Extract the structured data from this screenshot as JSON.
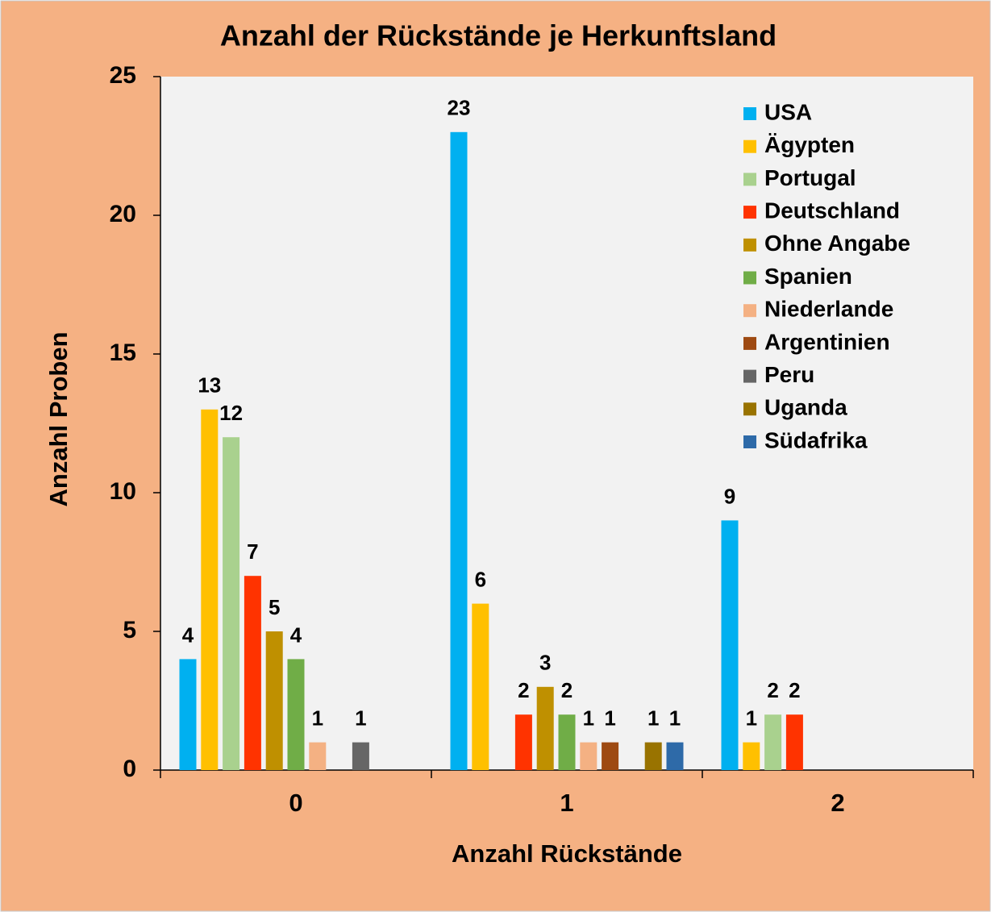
{
  "chart_data": {
    "type": "bar",
    "title": "Anzahl der Rückstände je Herkunftsland",
    "x_label": "Anzahl Rückstände",
    "y_label": "Anzahl Proben",
    "categories": [
      "0",
      "1",
      "2"
    ],
    "ylim": [
      0,
      25
    ],
    "yticks": [
      0,
      5,
      10,
      15,
      20,
      25
    ],
    "series": [
      {
        "name": "USA",
        "color": "#00b0f0",
        "values": [
          4,
          23,
          9
        ]
      },
      {
        "name": "Ägypten",
        "color": "#ffc000",
        "values": [
          13,
          6,
          1
        ]
      },
      {
        "name": "Portugal",
        "color": "#a9d18e",
        "values": [
          12,
          null,
          2
        ]
      },
      {
        "name": "Deutschland",
        "color": "#ff3300",
        "values": [
          7,
          2,
          2
        ]
      },
      {
        "name": "Ohne Angabe",
        "color": "#bf9000",
        "values": [
          5,
          3,
          null
        ]
      },
      {
        "name": "Spanien",
        "color": "#70ad47",
        "values": [
          4,
          2,
          null
        ]
      },
      {
        "name": "Niederlande",
        "color": "#f4b183",
        "values": [
          1,
          1,
          null
        ]
      },
      {
        "name": "Argentinien",
        "color": "#9e4a12",
        "values": [
          null,
          1,
          null
        ]
      },
      {
        "name": "Peru",
        "color": "#666666",
        "values": [
          1,
          null,
          null
        ]
      },
      {
        "name": "Uganda",
        "color": "#997300",
        "values": [
          null,
          1,
          null
        ]
      },
      {
        "name": "Südafrika",
        "color": "#2e6aa8",
        "values": [
          null,
          1,
          null
        ]
      }
    ]
  }
}
